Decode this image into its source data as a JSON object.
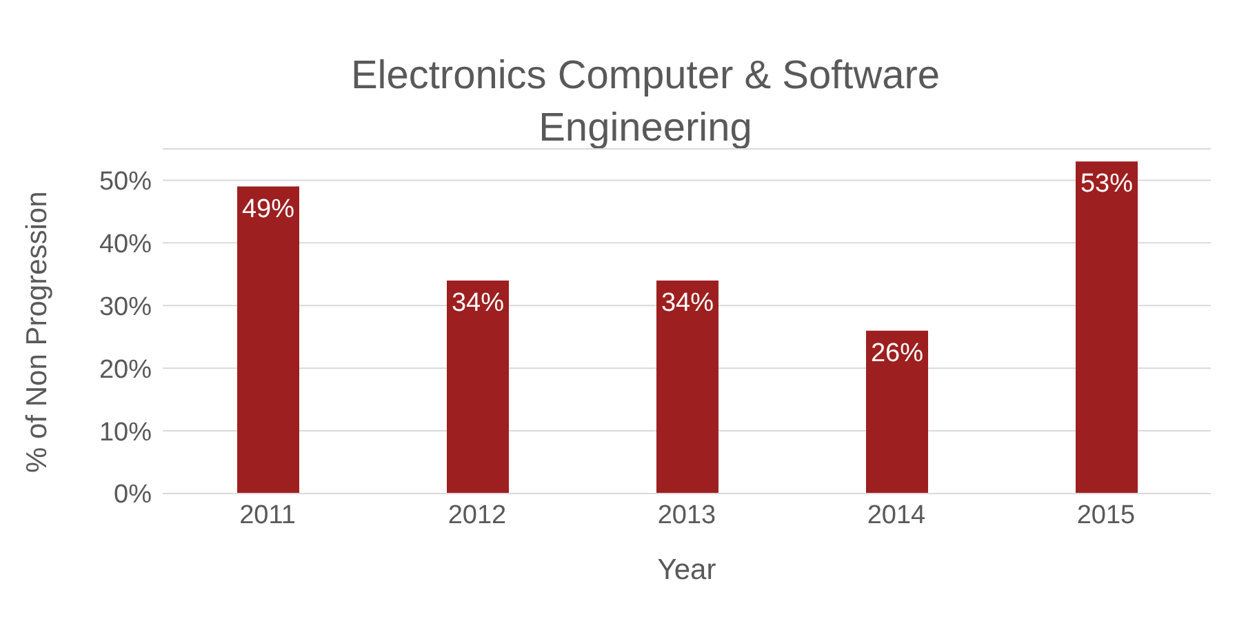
{
  "chart_data": {
    "type": "bar",
    "title": "Electronics Computer & Software Engineering",
    "xlabel": "Year",
    "ylabel": "% of Non Progression",
    "categories": [
      "2011",
      "2012",
      "2013",
      "2014",
      "2015"
    ],
    "values": [
      49,
      34,
      34,
      26,
      53
    ],
    "value_labels": [
      "49%",
      "34%",
      "34%",
      "26%",
      "53%"
    ],
    "color": "#9e1f20",
    "ylim": [
      0,
      55
    ],
    "yticks": [
      {
        "value": 0,
        "label": "0%"
      },
      {
        "value": 10,
        "label": "10%"
      },
      {
        "value": 20,
        "label": "20%"
      },
      {
        "value": 30,
        "label": "30%"
      },
      {
        "value": 40,
        "label": "40%"
      },
      {
        "value": 50,
        "label": "50%"
      }
    ],
    "grid": "y"
  }
}
